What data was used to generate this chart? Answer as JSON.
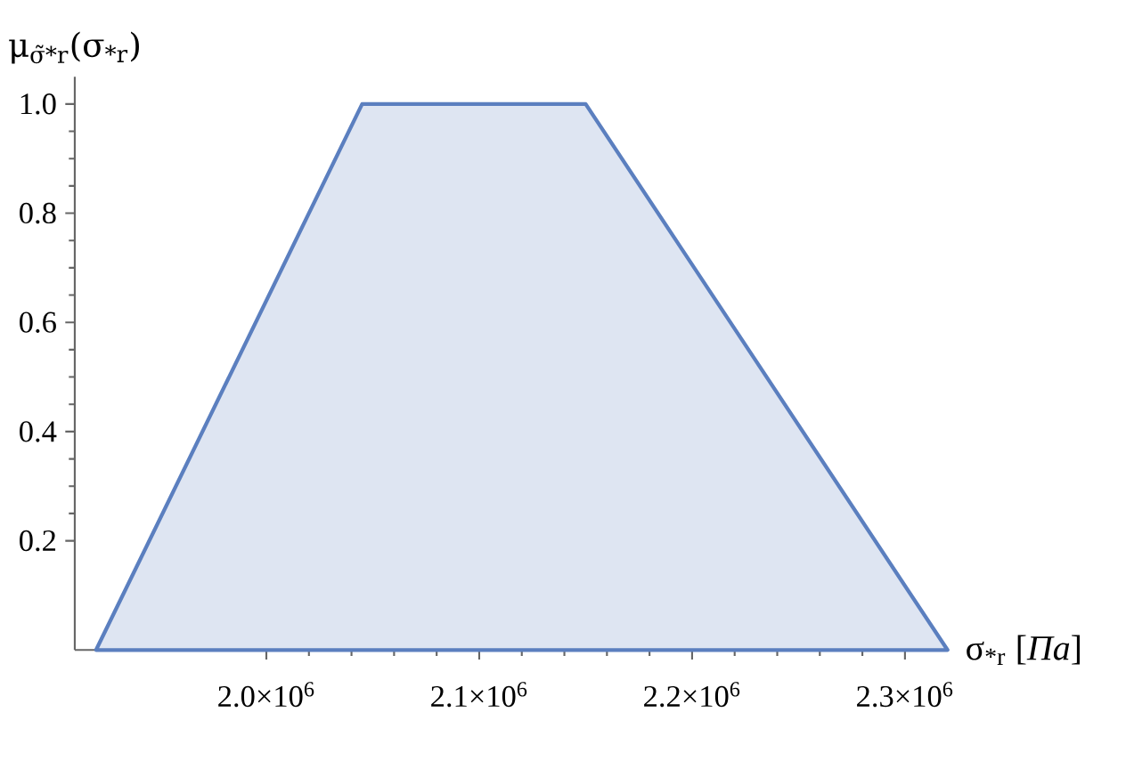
{
  "chart_data": {
    "type": "area",
    "xlabel": "σ$_{*r}$ [*Па*]",
    "ylabel": "μ$_{σ̃*r}$(σ$_{*r}$)",
    "x": [
      1920000,
      2045000,
      2150000,
      2320000
    ],
    "series": [
      {
        "color": "#5b7fbf",
        "values": [
          0,
          1,
          1,
          0
        ]
      }
    ],
    "xlim": [
      1910000,
      2320000
    ],
    "ylim": [
      0,
      1.05
    ],
    "xticks": [
      {
        "value": 2000000,
        "label": "2.0×10$^{6}$"
      },
      {
        "value": 2100000,
        "label": "2.1×10$^{6}$"
      },
      {
        "value": 2200000,
        "label": "2.2×10$^{6}$"
      },
      {
        "value": 2300000,
        "label": "2.3×10$^{6}$"
      }
    ],
    "yticks": [
      {
        "value": 0.2,
        "label": "0.2"
      },
      {
        "value": 0.4,
        "label": "0.4"
      },
      {
        "value": 0.6,
        "label": "0.6"
      },
      {
        "value": 0.8,
        "label": "0.8"
      },
      {
        "value": 1.0,
        "label": "1.0"
      }
    ]
  }
}
